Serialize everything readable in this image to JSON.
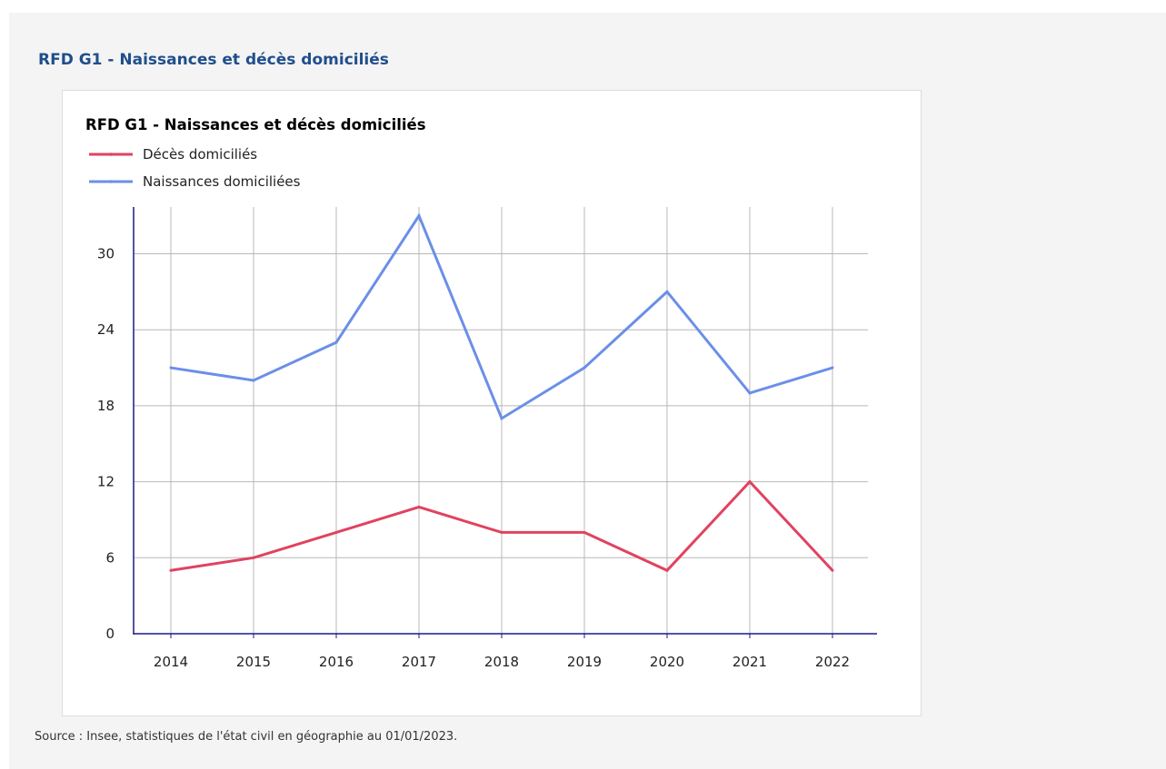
{
  "section_title": "RFD G1 - Naissances et décès domiciliés",
  "source_text": "Source : Insee, statistiques de l'état civil en géographie au 01/01/2023.",
  "colors": {
    "deces": "#e0435f",
    "naissances": "#6b8fe8",
    "axis": "#1a1a8a",
    "grid": "#b8b8b8",
    "title": "#1f4e8c"
  },
  "chart_data": {
    "type": "line",
    "title": "RFD G1 - Naissances et décès domiciliés",
    "xlabel": "",
    "ylabel": "",
    "categories": [
      "2014",
      "2015",
      "2016",
      "2017",
      "2018",
      "2019",
      "2020",
      "2021",
      "2022"
    ],
    "yticks": [
      0,
      6,
      12,
      18,
      24,
      30
    ],
    "ylim": [
      0,
      33.5
    ],
    "grid": true,
    "legend_position": "top-left",
    "series": [
      {
        "name": "Décès domiciliés",
        "color": "#e0435f",
        "values": [
          5,
          6,
          8,
          10,
          8,
          8,
          5,
          12,
          5
        ]
      },
      {
        "name": "Naissances domiciliées",
        "color": "#6b8fe8",
        "values": [
          21,
          20,
          23,
          33,
          17,
          21,
          27,
          19,
          21
        ]
      }
    ]
  }
}
